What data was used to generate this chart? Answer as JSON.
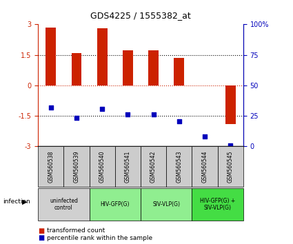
{
  "title": "GDS4225 / 1555382_at",
  "samples": [
    "GSM560538",
    "GSM560539",
    "GSM560540",
    "GSM560541",
    "GSM560542",
    "GSM560543",
    "GSM560544",
    "GSM560545"
  ],
  "bar_values": [
    2.85,
    1.6,
    2.8,
    1.72,
    1.72,
    1.35,
    0.0,
    -1.9
  ],
  "scatter_values": [
    -1.1,
    -1.6,
    -1.15,
    -1.42,
    -1.42,
    -1.75,
    -2.5,
    -2.95
  ],
  "ylim": [
    -3,
    3
  ],
  "yticks": [
    -3,
    -1.5,
    0,
    1.5,
    3
  ],
  "ytick_labels": [
    "-3",
    "-1.5",
    "0",
    "1.5",
    "3"
  ],
  "right_yticks": [
    0,
    25,
    50,
    75,
    100
  ],
  "right_ytick_labels": [
    "0",
    "25",
    "50",
    "75",
    "100%"
  ],
  "bar_color": "#cc2200",
  "scatter_color": "#0000bb",
  "groups": [
    {
      "label": "uninfected\ncontrol",
      "start": 0,
      "end": 2,
      "color": "#d0d0d0"
    },
    {
      "label": "HIV-GFP(G)",
      "start": 2,
      "end": 4,
      "color": "#90ee90"
    },
    {
      "label": "SIV-VLP(G)",
      "start": 4,
      "end": 6,
      "color": "#90ee90"
    },
    {
      "label": "HIV-GFP(G) +\nSIV-VLP(G)",
      "start": 6,
      "end": 8,
      "color": "#44dd44"
    }
  ],
  "infection_label": "infection",
  "legend_bar_label": "transformed count",
  "legend_scatter_label": "percentile rank within the sample",
  "sample_box_color": "#cccccc",
  "fig_width": 4.25,
  "fig_height": 3.54,
  "dpi": 100
}
